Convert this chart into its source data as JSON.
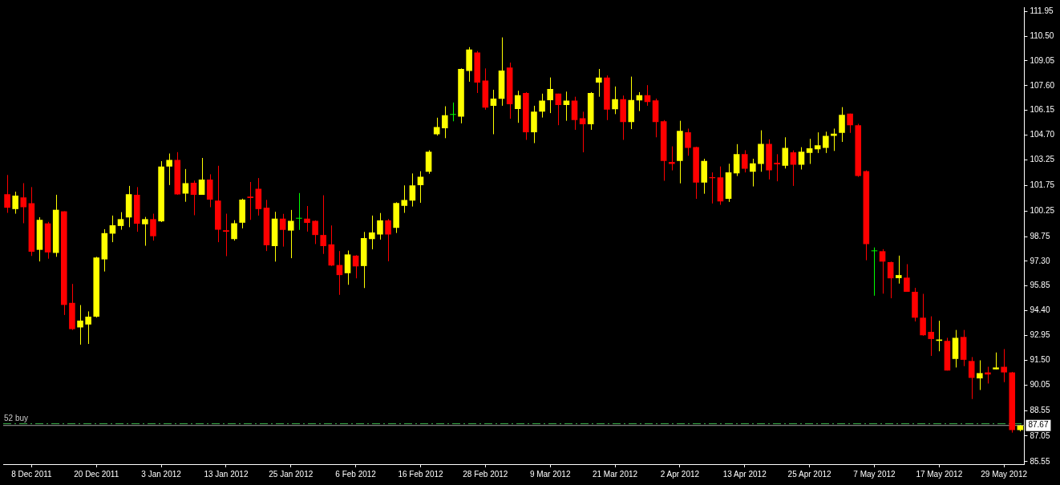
{
  "chart_data": {
    "type": "candlestick",
    "categories": [
      null,
      null,
      null,
      "8 Dec 2011",
      null,
      null,
      null,
      null,
      null,
      null,
      null,
      "20 Dec 2011",
      null,
      null,
      null,
      null,
      null,
      null,
      null,
      "3 Jan 2012",
      null,
      null,
      null,
      null,
      null,
      null,
      null,
      "13 Jan 2012",
      null,
      null,
      null,
      null,
      null,
      null,
      null,
      "25 Jan 2012",
      null,
      null,
      null,
      null,
      null,
      null,
      null,
      "6 Feb 2012",
      null,
      null,
      null,
      null,
      null,
      null,
      null,
      "16 Feb 2012",
      null,
      null,
      null,
      null,
      null,
      null,
      null,
      "28 Feb 2012",
      null,
      null,
      null,
      null,
      null,
      null,
      null,
      "9 Mar 2012",
      null,
      null,
      null,
      null,
      null,
      null,
      null,
      "21 Mar 2012",
      null,
      null,
      null,
      null,
      null,
      null,
      null,
      "2 Apr 2012",
      null,
      null,
      null,
      null,
      null,
      null,
      null,
      "13 Apr 2012",
      null,
      null,
      null,
      null,
      null,
      null,
      null,
      "25 Apr 2012",
      null,
      null,
      null,
      null,
      null,
      null,
      null,
      "7 May 2012",
      null,
      null,
      null,
      null,
      null,
      null,
      null,
      "17 May 2012",
      null,
      null,
      null,
      null,
      null,
      null,
      null,
      "29 May 2012",
      null,
      null
    ],
    "ohlc": [
      [
        101.23,
        102.36,
        100.14,
        100.44
      ],
      [
        100.36,
        101.38,
        100.09,
        101.15
      ],
      [
        101.05,
        101.88,
        99.53,
        100.47
      ],
      [
        100.7,
        101.65,
        97.61,
        97.86
      ],
      [
        97.97,
        99.88,
        97.29,
        99.73
      ],
      [
        99.52,
        99.61,
        97.45,
        97.82
      ],
      [
        97.79,
        101.2,
        97.56,
        100.32
      ],
      [
        100.23,
        100.23,
        94.15,
        94.74
      ],
      [
        94.86,
        95.97,
        93.27,
        93.32
      ],
      [
        93.42,
        94.73,
        92.41,
        93.82
      ],
      [
        93.59,
        94.36,
        92.45,
        94.05
      ],
      [
        94.05,
        97.56,
        94.0,
        97.52
      ],
      [
        97.41,
        99.18,
        96.7,
        98.95
      ],
      [
        98.92,
        99.98,
        98.42,
        99.41
      ],
      [
        99.37,
        100.18,
        99.15,
        99.77
      ],
      [
        99.87,
        101.72,
        99.3,
        101.23
      ],
      [
        101.2,
        101.65,
        99.03,
        99.5
      ],
      [
        99.47,
        99.9,
        98.21,
        99.77
      ],
      [
        99.77,
        100.09,
        98.51,
        98.77
      ],
      [
        99.64,
        103.17,
        99.6,
        102.86
      ],
      [
        102.86,
        103.62,
        101.77,
        103.24
      ],
      [
        103.24,
        103.7,
        101.2,
        101.22
      ],
      [
        101.27,
        102.71,
        100.79,
        101.88
      ],
      [
        101.9,
        102.03,
        100.0,
        101.2
      ],
      [
        101.2,
        103.36,
        101.2,
        102.09
      ],
      [
        102.09,
        102.4,
        100.47,
        100.92
      ],
      [
        100.86,
        102.9,
        98.42,
        99.15
      ],
      [
        99.12,
        100.09,
        97.6,
        99.03
      ],
      [
        98.6,
        99.71,
        98.51,
        99.53
      ],
      [
        99.56,
        100.97,
        99.23,
        100.92
      ],
      [
        101.09,
        101.95,
        99.73,
        101.01
      ],
      [
        101.55,
        102.18,
        99.98,
        100.36
      ],
      [
        100.44,
        100.9,
        97.9,
        98.24
      ],
      [
        98.19,
        100.2,
        97.28,
        99.8
      ],
      [
        99.8,
        100.08,
        98.16,
        99.14
      ],
      [
        99.1,
        100.31,
        97.48,
        99.67
      ],
      [
        99.8,
        101.3,
        99.14,
        99.8
      ],
      [
        99.8,
        100.54,
        99.04,
        99.55
      ],
      [
        99.67,
        99.7,
        98.31,
        98.84
      ],
      [
        98.84,
        101.17,
        97.73,
        98.19
      ],
      [
        98.29,
        99.4,
        97.02,
        97.05
      ],
      [
        97.08,
        97.9,
        95.33,
        96.49
      ],
      [
        96.6,
        97.93,
        95.92,
        97.7
      ],
      [
        97.63,
        97.66,
        96.3,
        97.0
      ],
      [
        97.02,
        99.02,
        95.73,
        98.66
      ],
      [
        98.6,
        99.98,
        98.0,
        98.99
      ],
      [
        98.87,
        100.13,
        98.57,
        99.7
      ],
      [
        99.7,
        99.78,
        97.3,
        98.87
      ],
      [
        99.26,
        100.76,
        98.96,
        100.72
      ],
      [
        100.55,
        101.75,
        100.14,
        100.89
      ],
      [
        100.86,
        102.45,
        100.51,
        101.75
      ],
      [
        101.76,
        102.58,
        100.73,
        102.25
      ],
      [
        102.55,
        103.81,
        102.43,
        103.72
      ],
      [
        104.75,
        105.72,
        104.67,
        105.17
      ],
      [
        105.1,
        106.39,
        104.52,
        105.86
      ],
      [
        105.89,
        106.61,
        105.51,
        105.89
      ],
      [
        105.78,
        108.61,
        105.39,
        108.58
      ],
      [
        108.46,
        109.86,
        107.83,
        109.72
      ],
      [
        109.54,
        109.63,
        107.17,
        107.78
      ],
      [
        107.9,
        108.61,
        106.19,
        106.31
      ],
      [
        106.42,
        107.36,
        104.75,
        106.84
      ],
      [
        106.83,
        110.43,
        106.42,
        108.49
      ],
      [
        108.66,
        108.95,
        105.66,
        106.51
      ],
      [
        106.23,
        107.3,
        105.42,
        107.04
      ],
      [
        107.17,
        107.22,
        104.42,
        104.87
      ],
      [
        104.87,
        106.42,
        104.23,
        106.08
      ],
      [
        106.08,
        107.13,
        105.73,
        106.72
      ],
      [
        106.75,
        108.08,
        105.99,
        107.4
      ],
      [
        107.13,
        107.13,
        105.28,
        106.46
      ],
      [
        106.46,
        107.25,
        105.54,
        106.72
      ],
      [
        106.72,
        106.95,
        105.01,
        105.58
      ],
      [
        105.69,
        106.07,
        103.69,
        105.33
      ],
      [
        105.33,
        107.22,
        105.01,
        107.17
      ],
      [
        107.78,
        108.58,
        106.95,
        108.08
      ],
      [
        108.08,
        108.2,
        105.58,
        106.19
      ],
      [
        106.22,
        107.55,
        105.93,
        106.81
      ],
      [
        106.81,
        107.02,
        104.42,
        105.46
      ],
      [
        105.46,
        108.13,
        105.05,
        106.76
      ],
      [
        106.73,
        107.22,
        106.11,
        107.04
      ],
      [
        107.04,
        107.63,
        106.42,
        106.64
      ],
      [
        106.73,
        106.84,
        104.57,
        105.46
      ],
      [
        105.51,
        105.58,
        102.02,
        103.19
      ],
      [
        103.13,
        104.04,
        102.63,
        103.01
      ],
      [
        103.19,
        105.54,
        101.87,
        104.95
      ],
      [
        104.87,
        105.08,
        103.49,
        103.95
      ],
      [
        103.99,
        104.02,
        100.96,
        101.92
      ],
      [
        101.92,
        103.31,
        101.26,
        103.19
      ],
      [
        102.23,
        102.51,
        100.69,
        102.17
      ],
      [
        102.22,
        102.86,
        100.61,
        100.81
      ],
      [
        100.96,
        103.02,
        100.78,
        102.51
      ],
      [
        102.45,
        104.17,
        102.3,
        103.58
      ],
      [
        103.58,
        103.81,
        102.51,
        102.73
      ],
      [
        102.55,
        103.31,
        101.69,
        103.04
      ],
      [
        103.01,
        104.98,
        102.55,
        104.18
      ],
      [
        104.18,
        104.45,
        102.1,
        102.63
      ],
      [
        103.08,
        103.58,
        101.99,
        102.98
      ],
      [
        102.9,
        104.57,
        102.74,
        103.95
      ],
      [
        103.69,
        103.8,
        101.72,
        102.96
      ],
      [
        102.96,
        103.99,
        102.68,
        103.72
      ],
      [
        103.65,
        104.48,
        103.01,
        103.92
      ],
      [
        103.87,
        104.86,
        103.65,
        104.1
      ],
      [
        103.95,
        104.9,
        103.65,
        104.65
      ],
      [
        104.65,
        105.08,
        103.77,
        104.78
      ],
      [
        104.83,
        106.34,
        104.3,
        105.89
      ],
      [
        105.96,
        105.96,
        104.83,
        105.28
      ],
      [
        105.28,
        105.36,
        102.25,
        102.3
      ],
      [
        102.58,
        102.63,
        97.36,
        98.31
      ],
      [
        97.89,
        98.11,
        95.28,
        97.89
      ],
      [
        97.89,
        98.01,
        95.4,
        97.28
      ],
      [
        97.25,
        97.28,
        95.13,
        96.3
      ],
      [
        96.31,
        97.63,
        95.99,
        96.49
      ],
      [
        96.34,
        97.13,
        95.51,
        95.51
      ],
      [
        95.51,
        95.74,
        93.77,
        93.99
      ],
      [
        93.99,
        95.39,
        92.93,
        92.96
      ],
      [
        93.16,
        94.07,
        91.75,
        92.74
      ],
      [
        92.63,
        93.81,
        92.02,
        92.71
      ],
      [
        92.63,
        92.81,
        90.89,
        90.89
      ],
      [
        91.57,
        93.27,
        91.07,
        92.81
      ],
      [
        92.86,
        93.27,
        91.15,
        91.52
      ],
      [
        91.45,
        91.68,
        89.22,
        90.46
      ],
      [
        90.43,
        91.49,
        89.75,
        90.74
      ],
      [
        90.78,
        91.11,
        90.13,
        90.66
      ],
      [
        90.96,
        91.95,
        90.96,
        91.07
      ],
      [
        91.11,
        92.15,
        90.21,
        90.78
      ],
      [
        90.78,
        90.81,
        87.25,
        87.4
      ],
      [
        87.4,
        87.7,
        87.33,
        87.67
      ]
    ],
    "colors": [
      "#ff0000",
      "#ffff00",
      "#ff0000",
      "#ff0000",
      "#ffff00",
      "#ff0000",
      "#ffff00",
      "#ff0000",
      "#ff0000",
      "#ffff00",
      "#ffff00",
      "#ffff00",
      "#ffff00",
      "#ffff00",
      "#ffff00",
      "#ffff00",
      "#ff0000",
      "#ffff00",
      "#ff0000",
      "#ffff00",
      "#ffff00",
      "#ff0000",
      "#ffff00",
      "#ff0000",
      "#ffff00",
      "#ff0000",
      "#ff0000",
      "#ff0000",
      "#ffff00",
      "#ffff00",
      "#ff0000",
      "#ff0000",
      "#ff0000",
      "#ffff00",
      "#ff0000",
      "#ffff00",
      "#00ff00",
      "#ff0000",
      "#ff0000",
      "#ff0000",
      "#ff0000",
      "#ff0000",
      "#ffff00",
      "#ff0000",
      "#ffff00",
      "#ffff00",
      "#ffff00",
      "#ff0000",
      "#ffff00",
      "#ffff00",
      "#ffff00",
      "#ffff00",
      "#ffff00",
      "#ffff00",
      "#ffff00",
      "#00ff00",
      "#ffff00",
      "#ffff00",
      "#ff0000",
      "#ff0000",
      "#ffff00",
      "#ffff00",
      "#ff0000",
      "#ffff00",
      "#ff0000",
      "#ffff00",
      "#ffff00",
      "#ffff00",
      "#ff0000",
      "#ffff00",
      "#ff0000",
      "#ff0000",
      "#ffff00",
      "#ffff00",
      "#ff0000",
      "#ffff00",
      "#ff0000",
      "#ffff00",
      "#ffff00",
      "#ff0000",
      "#ff0000",
      "#ff0000",
      "#ff0000",
      "#ffff00",
      "#ff0000",
      "#ff0000",
      "#ffff00",
      "#ff0000",
      "#ff0000",
      "#ffff00",
      "#ffff00",
      "#ff0000",
      "#ffff00",
      "#ffff00",
      "#ff0000",
      "#ff0000",
      "#ffff00",
      "#ff0000",
      "#ffff00",
      "#ffff00",
      "#ffff00",
      "#ffff00",
      "#ffff00",
      "#ffff00",
      "#ff0000",
      "#ff0000",
      "#ff0000",
      "#00ff00",
      "#ff0000",
      "#ff0000",
      "#ffff00",
      "#ff0000",
      "#ff0000",
      "#ff0000",
      "#ff0000",
      "#ffff00",
      "#ff0000",
      "#ffff00",
      "#ff0000",
      "#ff0000",
      "#ffff00",
      "#ff0000",
      "#ffff00",
      "#ff0000",
      "#ff0000",
      "#ffff00"
    ],
    "ylim": [
      85.4,
      112.2
    ],
    "yticks": [
      {
        "value": 111.95,
        "label": "111.95"
      },
      {
        "value": 110.5,
        "label": "110.50"
      },
      {
        "value": 109.05,
        "label": "109.05"
      },
      {
        "value": 107.6,
        "label": "107.60"
      },
      {
        "value": 106.15,
        "label": "106.15"
      },
      {
        "value": 104.7,
        "label": "104.70"
      },
      {
        "value": 103.25,
        "label": "103.25"
      },
      {
        "value": 101.75,
        "label": "101.75"
      },
      {
        "value": 100.25,
        "label": "100.25"
      },
      {
        "value": 98.75,
        "label": "98.75"
      },
      {
        "value": 97.3,
        "label": "97.30"
      },
      {
        "value": 95.85,
        "label": "95.85"
      },
      {
        "value": 94.4,
        "label": "94.40"
      },
      {
        "value": 92.95,
        "label": "92.95"
      },
      {
        "value": 91.5,
        "label": "91.50"
      },
      {
        "value": 90.05,
        "label": "90.05"
      },
      {
        "value": 88.55,
        "label": "88.55"
      },
      {
        "value": 87.05,
        "label": "87.05"
      },
      {
        "value": 85.55,
        "label": "85.55"
      }
    ],
    "ref_lines": [
      {
        "axis": "y",
        "value": 87.77,
        "label": "52 buy",
        "color": "#3cb44b",
        "line_style": "dashed"
      },
      {
        "axis": "y",
        "value": 87.67,
        "label": "87.67",
        "color": "#a0a0a0",
        "line_style": "solid"
      }
    ]
  }
}
